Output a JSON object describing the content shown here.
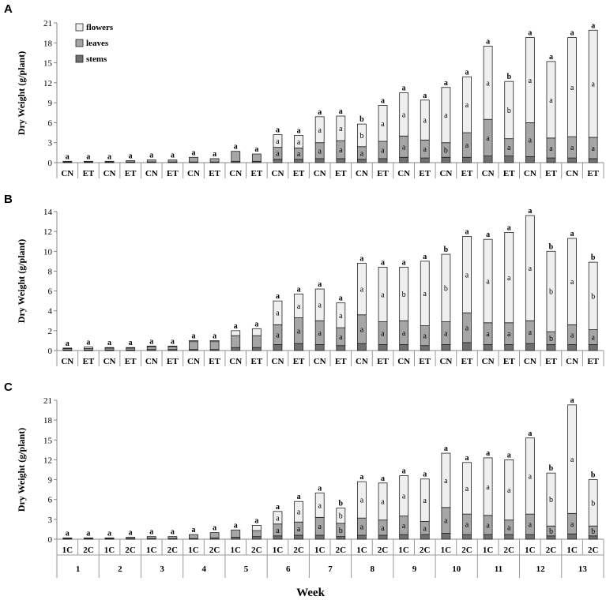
{
  "figure": {
    "xlabel": "Week"
  },
  "chart_data": [
    {
      "type": "bar",
      "stacked": true,
      "panel": "A",
      "ylabel": "Dry Weight (g/plant)",
      "ylim": [
        0,
        21
      ],
      "yticks": [
        0,
        3,
        6,
        9,
        12,
        15,
        18,
        21
      ],
      "legend": {
        "position": "top-left",
        "entries": [
          "flowers",
          "leaves",
          "stems"
        ]
      },
      "categories": [
        "CN",
        "ET",
        "CN",
        "ET",
        "CN",
        "ET",
        "CN",
        "ET",
        "CN",
        "ET",
        "CN",
        "ET",
        "CN",
        "ET",
        "CN",
        "ET",
        "CN",
        "ET",
        "CN",
        "ET",
        "CN",
        "ET",
        "CN",
        "ET",
        "CN",
        "ET"
      ],
      "series": [
        {
          "name": "stems",
          "color": "#707070",
          "values": [
            0.1,
            0.1,
            0.1,
            0.1,
            0.1,
            0.1,
            0.1,
            0.1,
            0.2,
            0.2,
            0.5,
            0.5,
            0.6,
            0.6,
            0.5,
            0.6,
            0.8,
            0.7,
            0.8,
            0.8,
            1.0,
            1.0,
            0.9,
            0.7,
            0.7,
            0.6
          ]
        },
        {
          "name": "leaves",
          "color": "#a6a6a6",
          "values": [
            0.1,
            0.1,
            0.1,
            0.2,
            0.3,
            0.3,
            0.7,
            0.5,
            1.5,
            1.1,
            1.8,
            1.7,
            2.4,
            2.7,
            1.9,
            2.6,
            3.2,
            2.7,
            2.2,
            3.7,
            5.5,
            2.6,
            5.1,
            3.0,
            3.2,
            3.2
          ]
        },
        {
          "name": "flowers",
          "color": "#efefef",
          "values": [
            0,
            0,
            0,
            0,
            0,
            0,
            0,
            0,
            0,
            0,
            1.9,
            1.9,
            3.9,
            3.7,
            3.4,
            5.4,
            6.5,
            6.0,
            8.3,
            8.4,
            11.0,
            8.6,
            12.8,
            11.5,
            14.9,
            16.1
          ]
        }
      ],
      "sig_top": [
        "a",
        "a",
        "a",
        "a",
        "a",
        "a",
        "a",
        "a",
        "a",
        "a",
        "a",
        "a",
        "a",
        "a",
        "b",
        "a",
        "a",
        "a",
        "a",
        "a",
        "a",
        "b",
        "a",
        "a",
        "a",
        "a"
      ],
      "sig_stems": [
        "",
        "",
        "",
        "",
        "",
        "",
        "",
        "",
        "",
        "",
        "",
        "",
        "",
        "",
        "",
        "",
        "",
        "",
        "",
        "",
        "",
        "",
        "",
        "",
        "",
        ""
      ],
      "sig_leaves": [
        "",
        "",
        "",
        "",
        "",
        "",
        "",
        "",
        "",
        "",
        "a",
        "a",
        "a",
        "a",
        "a",
        "a",
        "a",
        "a",
        "b",
        "a",
        "a",
        "a",
        "a",
        "a",
        "a",
        "a"
      ],
      "sig_flowers": [
        "",
        "",
        "",
        "",
        "",
        "",
        "",
        "",
        "",
        "",
        "a",
        "a",
        "a",
        "a",
        "b",
        "a",
        "a",
        "a",
        "a",
        "a",
        "a",
        "b",
        "a",
        "a",
        "a",
        "a"
      ]
    },
    {
      "type": "bar",
      "stacked": true,
      "panel": "B",
      "ylabel": "Dry Weight (g/plant)",
      "ylim": [
        0,
        14
      ],
      "yticks": [
        0,
        2,
        4,
        6,
        8,
        10,
        12,
        14
      ],
      "categories": [
        "CN",
        "ET",
        "CN",
        "ET",
        "CN",
        "ET",
        "CN",
        "ET",
        "CN",
        "ET",
        "CN",
        "ET",
        "CN",
        "ET",
        "CN",
        "ET",
        "CN",
        "ET",
        "CN",
        "ET",
        "CN",
        "ET",
        "CN",
        "ET",
        "CN",
        "ET"
      ],
      "series": [
        {
          "name": "stems",
          "color": "#707070",
          "values": [
            0.05,
            0.05,
            0.05,
            0.05,
            0.1,
            0.1,
            0.1,
            0.1,
            0.3,
            0.3,
            0.6,
            0.7,
            0.6,
            0.5,
            0.7,
            0.6,
            0.6,
            0.5,
            0.6,
            0.8,
            0.6,
            0.6,
            0.7,
            0.6,
            0.6,
            0.6
          ]
        },
        {
          "name": "leaves",
          "color": "#a6a6a6",
          "values": [
            0.15,
            0.15,
            0.2,
            0.2,
            0.3,
            0.3,
            0.8,
            0.8,
            1.2,
            1.2,
            2.0,
            2.6,
            2.4,
            1.8,
            2.9,
            2.3,
            2.4,
            2.0,
            2.3,
            3.0,
            2.2,
            2.2,
            2.3,
            1.3,
            2.0,
            1.5
          ]
        },
        {
          "name": "flowers",
          "color": "#efefef",
          "values": [
            0.05,
            0.15,
            0.05,
            0.05,
            0.05,
            0.05,
            0.1,
            0.1,
            0.5,
            0.7,
            2.4,
            2.4,
            3.2,
            2.5,
            5.2,
            5.5,
            5.4,
            6.5,
            6.8,
            7.7,
            8.4,
            9.1,
            10.6,
            8.1,
            8.7,
            6.8
          ]
        }
      ],
      "sig_top": [
        "a",
        "a",
        "a",
        "a",
        "a",
        "a",
        "a",
        "a",
        "a",
        "a",
        "a",
        "a",
        "a",
        "a",
        "a",
        "a",
        "a",
        "a",
        "b",
        "a",
        "a",
        "a",
        "a",
        "b",
        "a",
        "b"
      ],
      "sig_stems": [
        "",
        "",
        "",
        "",
        "",
        "",
        "",
        "",
        "",
        "",
        "",
        "",
        "",
        "",
        "",
        "",
        "",
        "",
        "",
        "",
        "",
        "",
        "",
        "",
        "",
        ""
      ],
      "sig_leaves": [
        "",
        "",
        "",
        "",
        "",
        "",
        "",
        "",
        "",
        "",
        "a",
        "a",
        "a",
        "a",
        "a",
        "a",
        "a",
        "a",
        "a",
        "a",
        "a",
        "a",
        "a",
        "b",
        "a",
        "a"
      ],
      "sig_flowers": [
        "",
        "",
        "",
        "",
        "",
        "",
        "",
        "",
        "",
        "",
        "a",
        "a",
        "a",
        "a",
        "a",
        "a",
        "b",
        "a",
        "b",
        "a",
        "a",
        "a",
        "a",
        "b",
        "a",
        "b"
      ]
    },
    {
      "type": "bar",
      "stacked": true,
      "panel": "C",
      "ylabel": "Dry Weight (g/plant)",
      "ylim": [
        0,
        21
      ],
      "yticks": [
        0,
        3,
        6,
        9,
        12,
        15,
        18,
        21
      ],
      "categories": [
        "1C",
        "2C",
        "1C",
        "2C",
        "1C",
        "2C",
        "1C",
        "2C",
        "1C",
        "2C",
        "1C",
        "2C",
        "1C",
        "2C",
        "1C",
        "2C",
        "1C",
        "2C",
        "1C",
        "2C",
        "1C",
        "2C",
        "1C",
        "2C",
        "1C",
        "2C"
      ],
      "weeks": [
        "1",
        "2",
        "3",
        "4",
        "5",
        "6",
        "7",
        "8",
        "9",
        "10",
        "11",
        "12",
        "13"
      ],
      "series": [
        {
          "name": "stems",
          "color": "#707070",
          "values": [
            0.1,
            0.1,
            0.1,
            0.1,
            0.1,
            0.1,
            0.1,
            0.2,
            0.3,
            0.4,
            0.5,
            0.6,
            0.6,
            0.4,
            0.6,
            0.6,
            0.7,
            0.7,
            0.9,
            0.7,
            0.7,
            0.7,
            0.7,
            0.5,
            0.8,
            0.5
          ]
        },
        {
          "name": "leaves",
          "color": "#a6a6a6",
          "values": [
            0.1,
            0.1,
            0.1,
            0.2,
            0.3,
            0.3,
            0.6,
            0.8,
            1.1,
            0.9,
            1.8,
            2.0,
            2.7,
            2.0,
            2.6,
            2.3,
            2.8,
            2.0,
            3.9,
            3.1,
            2.9,
            2.2,
            3.1,
            1.5,
            3.1,
            1.5
          ]
        },
        {
          "name": "flowers",
          "color": "#efefef",
          "values": [
            0,
            0,
            0,
            0,
            0,
            0,
            0,
            0,
            0,
            0.8,
            1.9,
            3.1,
            3.7,
            2.3,
            5.5,
            5.6,
            6.1,
            6.4,
            8.2,
            7.8,
            8.7,
            9.1,
            11.5,
            8.0,
            16.4,
            7.0
          ]
        }
      ],
      "sig_top": [
        "a",
        "a",
        "a",
        "a",
        "a",
        "a",
        "a",
        "a",
        "a",
        "a",
        "a",
        "a",
        "a",
        "b",
        "a",
        "a",
        "a",
        "a",
        "a",
        "a",
        "a",
        "a",
        "a",
        "b",
        "a",
        "b"
      ],
      "sig_stems": [
        "",
        "",
        "",
        "",
        "",
        "",
        "",
        "",
        "",
        "",
        "",
        "",
        "",
        "",
        "",
        "",
        "",
        "",
        "",
        "",
        "",
        "",
        "",
        "",
        "",
        ""
      ],
      "sig_leaves": [
        "",
        "",
        "",
        "",
        "",
        "",
        "",
        "",
        "",
        "",
        "a",
        "a",
        "a",
        "b",
        "a",
        "a",
        "a",
        "a",
        "a",
        "a",
        "a",
        "a",
        "a",
        "b",
        "a",
        "b"
      ],
      "sig_flowers": [
        "",
        "",
        "",
        "",
        "",
        "",
        "",
        "",
        "",
        "",
        "a",
        "a",
        "a",
        "b",
        "a",
        "a",
        "a",
        "a",
        "a",
        "a",
        "a",
        "a",
        "a",
        "b",
        "a",
        "b"
      ]
    }
  ]
}
